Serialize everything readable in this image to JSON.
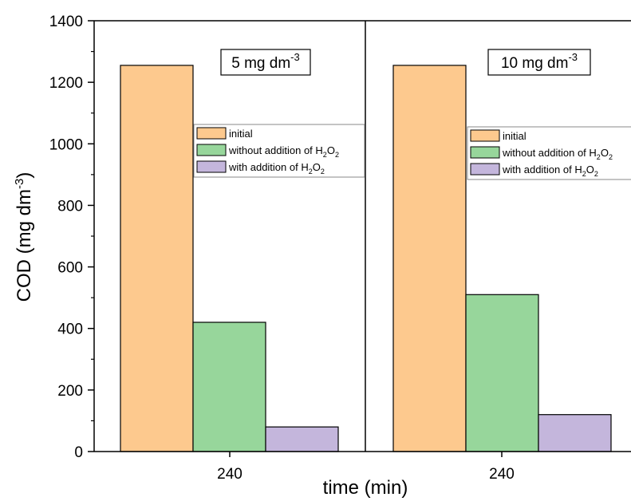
{
  "chart_data": {
    "type": "bar",
    "ylabel": "COD (mg dm",
    "ylabel_sup": "-3",
    "ylabel_end": ")",
    "xlabel": "time (min)",
    "ylim": [
      0,
      1400
    ],
    "yticks": [
      "0",
      "200",
      "400",
      "600",
      "800",
      "1000",
      "1200",
      "1400"
    ],
    "legend_position": "center-right",
    "colors": {
      "initial": "#fdc98e",
      "without": "#97d69b",
      "with": "#c4b6dc"
    },
    "panels": [
      {
        "box_label": "5 mg dm",
        "box_label_sup": "-3",
        "x_tick": "240",
        "series": [
          {
            "key": "initial",
            "value": 1255
          },
          {
            "key": "without",
            "value": 420
          },
          {
            "key": "with",
            "value": 80
          }
        ]
      },
      {
        "box_label": "10 mg dm",
        "box_label_sup": "-3",
        "x_tick": "240",
        "series": [
          {
            "key": "initial",
            "value": 1255
          },
          {
            "key": "without",
            "value": 510
          },
          {
            "key": "with",
            "value": 120
          }
        ]
      }
    ],
    "legend": [
      {
        "key": "initial",
        "label": "initial",
        "sub": "",
        "mid": "",
        "sub2": ""
      },
      {
        "key": "without",
        "label": "without addition of H",
        "sub": "2",
        "mid": "O",
        "sub2": "2"
      },
      {
        "key": "with",
        "label": "with addition of H",
        "sub": "2",
        "mid": "O",
        "sub2": "2"
      }
    ]
  }
}
